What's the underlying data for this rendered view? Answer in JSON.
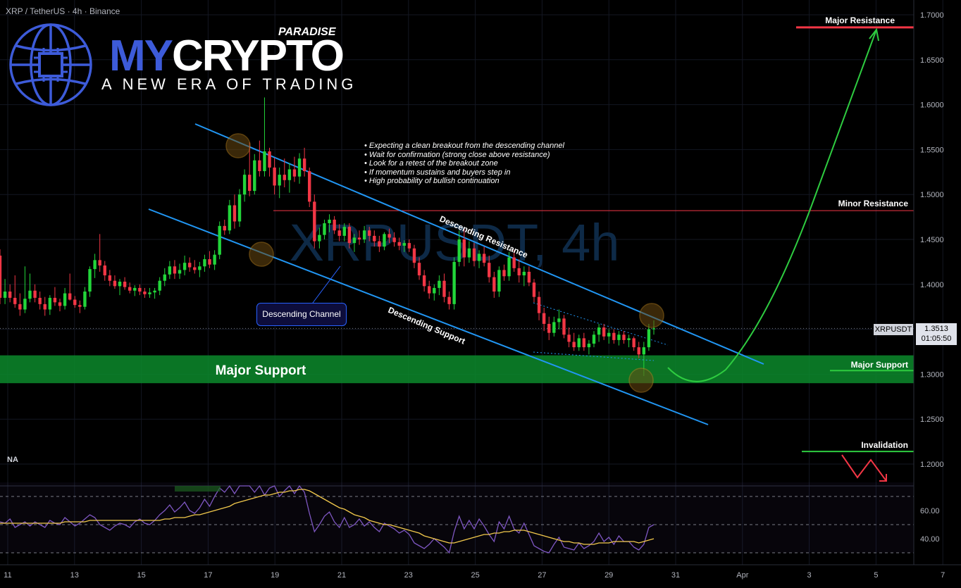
{
  "header": {
    "symbol_title": "XRP / TetherUS · 4h · Binance"
  },
  "logo": {
    "brand_part1": "MY",
    "brand_part2": "CRYPTO",
    "brand_super": "PARADISE",
    "tagline": "A NEW ERA OF TRADING"
  },
  "watermark": "XRPUSDT, 4h",
  "annotations": {
    "notes": [
      "Expecting a clean breakout from the descending channel",
      "Wait for confirmation (strong close above resistance)",
      "Look for a retest of the breakout zone",
      "If momentum sustains and buyers step in",
      "High probability of bullish continuation"
    ],
    "descending_channel": "Descending Channel",
    "descending_resistance": "Descending Resistance",
    "descending_support": "Descending Support",
    "major_support_zone": "Major Support",
    "major_support": "Major Support",
    "minor_resistance": "Minor Resistance",
    "major_resistance": "Major Resistance",
    "invalidation": "Invalidation"
  },
  "indicator": {
    "na_label": "NA"
  },
  "price_scale": {
    "symbol_tag": "XRPUSDT",
    "last_price": "1.3513",
    "countdown": "01:05:50"
  },
  "colors": {
    "up": "#22d63a",
    "down": "#f23645",
    "channel": "#2196f3",
    "support_zone": "#0c8a2c",
    "resistance": "#f23645",
    "projection": "#2ecc40",
    "rsi": "#7e57c2",
    "rsi_ma": "#f2c94c",
    "logo_blue": "#3d5bd9"
  },
  "chart_data": {
    "type": "candlestick",
    "title": "XRP / TetherUS · 4h · Binance",
    "y_ticks": [
      "1.7000",
      "1.6500",
      "1.6000",
      "1.5500",
      "1.5000",
      "1.4500",
      "1.4000",
      "1.3500",
      "1.3000",
      "1.2500",
      "1.2000"
    ],
    "ylim": [
      1.16,
      1.715
    ],
    "x_ticks": [
      "11",
      "13",
      "15",
      "17",
      "19",
      "21",
      "23",
      "25",
      "27",
      "29",
      "31",
      "Apr",
      "3",
      "5",
      "7"
    ],
    "levels": {
      "major_resistance": 1.686,
      "minor_resistance": 1.482,
      "major_support_zone": [
        1.29,
        1.321
      ],
      "major_support": 1.304,
      "invalidation": 1.214
    },
    "candles": [
      [
        1.432,
        1.439,
        1.378,
        1.385
      ],
      [
        1.385,
        1.406,
        1.378,
        1.392
      ],
      [
        1.392,
        1.4,
        1.38,
        1.385
      ],
      [
        1.385,
        1.41,
        1.374,
        1.378
      ],
      [
        1.378,
        1.39,
        1.365,
        1.372
      ],
      [
        1.372,
        1.42,
        1.368,
        1.384
      ],
      [
        1.384,
        1.412,
        1.38,
        1.393
      ],
      [
        1.393,
        1.4,
        1.38,
        1.385
      ],
      [
        1.385,
        1.392,
        1.372,
        1.378
      ],
      [
        1.378,
        1.386,
        1.365,
        1.372
      ],
      [
        1.372,
        1.388,
        1.366,
        1.385
      ],
      [
        1.385,
        1.397,
        1.376,
        1.38
      ],
      [
        1.38,
        1.384,
        1.37,
        1.376
      ],
      [
        1.376,
        1.396,
        1.372,
        1.39
      ],
      [
        1.39,
        1.412,
        1.382,
        1.383
      ],
      [
        1.383,
        1.387,
        1.374,
        1.377
      ],
      [
        1.377,
        1.382,
        1.368,
        1.375
      ],
      [
        1.375,
        1.397,
        1.372,
        1.392
      ],
      [
        1.392,
        1.42,
        1.386,
        1.417
      ],
      [
        1.417,
        1.434,
        1.407,
        1.427
      ],
      [
        1.427,
        1.456,
        1.414,
        1.421
      ],
      [
        1.421,
        1.426,
        1.404,
        1.41
      ],
      [
        1.41,
        1.416,
        1.398,
        1.404
      ],
      [
        1.404,
        1.41,
        1.395,
        1.398
      ],
      [
        1.398,
        1.406,
        1.388,
        1.403
      ],
      [
        1.403,
        1.408,
        1.394,
        1.397
      ],
      [
        1.397,
        1.402,
        1.39,
        1.393
      ],
      [
        1.393,
        1.399,
        1.387,
        1.396
      ],
      [
        1.396,
        1.4,
        1.388,
        1.392
      ],
      [
        1.392,
        1.396,
        1.385,
        1.389
      ],
      [
        1.389,
        1.396,
        1.385,
        1.391
      ],
      [
        1.391,
        1.396,
        1.384,
        1.393
      ],
      [
        1.393,
        1.408,
        1.388,
        1.404
      ],
      [
        1.404,
        1.418,
        1.398,
        1.411
      ],
      [
        1.411,
        1.426,
        1.406,
        1.42
      ],
      [
        1.42,
        1.427,
        1.406,
        1.412
      ],
      [
        1.412,
        1.423,
        1.406,
        1.416
      ],
      [
        1.416,
        1.432,
        1.41,
        1.424
      ],
      [
        1.424,
        1.43,
        1.414,
        1.419
      ],
      [
        1.419,
        1.427,
        1.412,
        1.416
      ],
      [
        1.416,
        1.425,
        1.408,
        1.42
      ],
      [
        1.42,
        1.433,
        1.414,
        1.428
      ],
      [
        1.428,
        1.437,
        1.418,
        1.422
      ],
      [
        1.422,
        1.438,
        1.416,
        1.433
      ],
      [
        1.433,
        1.47,
        1.428,
        1.465
      ],
      [
        1.465,
        1.472,
        1.455,
        1.46
      ],
      [
        1.46,
        1.494,
        1.456,
        1.488
      ],
      [
        1.488,
        1.5,
        1.462,
        1.47
      ],
      [
        1.47,
        1.506,
        1.464,
        1.5
      ],
      [
        1.5,
        1.528,
        1.492,
        1.522
      ],
      [
        1.522,
        1.558,
        1.498,
        1.504
      ],
      [
        1.504,
        1.545,
        1.5,
        1.538
      ],
      [
        1.538,
        1.56,
        1.52,
        1.526
      ],
      [
        1.526,
        1.608,
        1.52,
        1.548
      ],
      [
        1.548,
        1.552,
        1.52,
        1.53
      ],
      [
        1.53,
        1.541,
        1.5,
        1.51
      ],
      [
        1.51,
        1.53,
        1.496,
        1.522
      ],
      [
        1.522,
        1.54,
        1.508,
        1.516
      ],
      [
        1.516,
        1.535,
        1.502,
        1.528
      ],
      [
        1.528,
        1.542,
        1.514,
        1.52
      ],
      [
        1.52,
        1.546,
        1.512,
        1.54
      ],
      [
        1.54,
        1.552,
        1.52,
        1.526
      ],
      [
        1.526,
        1.53,
        1.486,
        1.492
      ],
      [
        1.492,
        1.5,
        1.44,
        1.448
      ],
      [
        1.448,
        1.463,
        1.44,
        1.455
      ],
      [
        1.455,
        1.472,
        1.45,
        1.468
      ],
      [
        1.468,
        1.478,
        1.458,
        1.472
      ],
      [
        1.472,
        1.476,
        1.456,
        1.46
      ],
      [
        1.46,
        1.467,
        1.448,
        1.454
      ],
      [
        1.454,
        1.468,
        1.448,
        1.464
      ],
      [
        1.464,
        1.468,
        1.44,
        1.446
      ],
      [
        1.446,
        1.456,
        1.436,
        1.452
      ],
      [
        1.452,
        1.46,
        1.444,
        1.45
      ],
      [
        1.45,
        1.465,
        1.446,
        1.46
      ],
      [
        1.46,
        1.464,
        1.448,
        1.454
      ],
      [
        1.454,
        1.46,
        1.442,
        1.448
      ],
      [
        1.448,
        1.454,
        1.436,
        1.442
      ],
      [
        1.442,
        1.458,
        1.438,
        1.456
      ],
      [
        1.456,
        1.462,
        1.446,
        1.452
      ],
      [
        1.452,
        1.458,
        1.442,
        1.447
      ],
      [
        1.447,
        1.452,
        1.438,
        1.443
      ],
      [
        1.443,
        1.449,
        1.436,
        1.446
      ],
      [
        1.446,
        1.45,
        1.436,
        1.44
      ],
      [
        1.44,
        1.444,
        1.418,
        1.424
      ],
      [
        1.424,
        1.43,
        1.405,
        1.41
      ],
      [
        1.41,
        1.416,
        1.392,
        1.398
      ],
      [
        1.398,
        1.404,
        1.384,
        1.39
      ],
      [
        1.39,
        1.4,
        1.382,
        1.396
      ],
      [
        1.396,
        1.41,
        1.388,
        1.404
      ],
      [
        1.404,
        1.412,
        1.38,
        1.386
      ],
      [
        1.386,
        1.392,
        1.372,
        1.378
      ],
      [
        1.378,
        1.43,
        1.372,
        1.425
      ],
      [
        1.425,
        1.46,
        1.42,
        1.45
      ],
      [
        1.45,
        1.462,
        1.42,
        1.43
      ],
      [
        1.43,
        1.448,
        1.424,
        1.44
      ],
      [
        1.44,
        1.446,
        1.42,
        1.426
      ],
      [
        1.426,
        1.438,
        1.418,
        1.434
      ],
      [
        1.434,
        1.442,
        1.42,
        1.424
      ],
      [
        1.424,
        1.432,
        1.402,
        1.408
      ],
      [
        1.408,
        1.414,
        1.385,
        1.392
      ],
      [
        1.392,
        1.42,
        1.386,
        1.416
      ],
      [
        1.416,
        1.422,
        1.404,
        1.409
      ],
      [
        1.409,
        1.436,
        1.404,
        1.43
      ],
      [
        1.43,
        1.438,
        1.414,
        1.418
      ],
      [
        1.418,
        1.428,
        1.402,
        1.41
      ],
      [
        1.41,
        1.42,
        1.398,
        1.414
      ],
      [
        1.414,
        1.42,
        1.398,
        1.402
      ],
      [
        1.402,
        1.406,
        1.38,
        1.386
      ],
      [
        1.386,
        1.392,
        1.36,
        1.368
      ],
      [
        1.368,
        1.374,
        1.348,
        1.356
      ],
      [
        1.356,
        1.364,
        1.338,
        1.346
      ],
      [
        1.346,
        1.364,
        1.342,
        1.358
      ],
      [
        1.358,
        1.372,
        1.35,
        1.362
      ],
      [
        1.362,
        1.366,
        1.34,
        1.344
      ],
      [
        1.344,
        1.352,
        1.33,
        1.336
      ],
      [
        1.336,
        1.346,
        1.326,
        1.33
      ],
      [
        1.33,
        1.344,
        1.326,
        1.34
      ],
      [
        1.34,
        1.346,
        1.326,
        1.33
      ],
      [
        1.33,
        1.338,
        1.322,
        1.334
      ],
      [
        1.334,
        1.348,
        1.33,
        1.344
      ],
      [
        1.344,
        1.356,
        1.336,
        1.352
      ],
      [
        1.352,
        1.356,
        1.338,
        1.342
      ],
      [
        1.342,
        1.35,
        1.334,
        1.346
      ],
      [
        1.346,
        1.35,
        1.334,
        1.338
      ],
      [
        1.338,
        1.348,
        1.332,
        1.344
      ],
      [
        1.344,
        1.348,
        1.334,
        1.338
      ],
      [
        1.338,
        1.344,
        1.33,
        1.34
      ],
      [
        1.34,
        1.342,
        1.326,
        1.33
      ],
      [
        1.33,
        1.336,
        1.318,
        1.322
      ],
      [
        1.322,
        1.336,
        1.298,
        1.33
      ],
      [
        1.33,
        1.356,
        1.326,
        1.35
      ],
      [
        1.35,
        1.36,
        1.344,
        1.351
      ]
    ],
    "rsi": {
      "ylim": [
        27,
        82
      ],
      "ticks": [
        "60.00",
        "40.00"
      ],
      "values": [
        52,
        51,
        54,
        48,
        50,
        52,
        49,
        52,
        50,
        48,
        53,
        51,
        50,
        55,
        52,
        49,
        51,
        54,
        57,
        55,
        50,
        48,
        46,
        49,
        51,
        50,
        48,
        52,
        54,
        51,
        50,
        53,
        57,
        60,
        64,
        59,
        62,
        66,
        60,
        58,
        62,
        68,
        63,
        70,
        76,
        73,
        78,
        72,
        79,
        80,
        81,
        73,
        78,
        71,
        76,
        79,
        70,
        74,
        78,
        72,
        80,
        73,
        58,
        45,
        50,
        56,
        59,
        52,
        48,
        55,
        48,
        50,
        54,
        49,
        52,
        48,
        45,
        51,
        49,
        47,
        44,
        46,
        43,
        37,
        35,
        33,
        36,
        40,
        37,
        34,
        30,
        45,
        56,
        47,
        53,
        47,
        54,
        49,
        43,
        38,
        52,
        47,
        56,
        47,
        44,
        51,
        43,
        35,
        33,
        31,
        30,
        36,
        41,
        34,
        33,
        32,
        37,
        33,
        35,
        38,
        44,
        38,
        41,
        36,
        42,
        38,
        38,
        34,
        32,
        36,
        48,
        50
      ],
      "ma": [
        51,
        51,
        51,
        51,
        51,
        51,
        51,
        51,
        51,
        51,
        51,
        51,
        51,
        52,
        52,
        52,
        52,
        52,
        53,
        53,
        53,
        53,
        53,
        53,
        53,
        53,
        53,
        53,
        53,
        53,
        53,
        53,
        53,
        54,
        54,
        55,
        55,
        55,
        56,
        57,
        57,
        58,
        59,
        60,
        61,
        62,
        63,
        65,
        66,
        67,
        68,
        69,
        70,
        71,
        71,
        72,
        73,
        73,
        74,
        74,
        75,
        75,
        74,
        72,
        70,
        68,
        66,
        64,
        62,
        61,
        59,
        57,
        56,
        55,
        53,
        52,
        51,
        50,
        50,
        49,
        48,
        47,
        46,
        45,
        44,
        42,
        41,
        40,
        39,
        38,
        37,
        37,
        38,
        39,
        40,
        41,
        42,
        43,
        43,
        44,
        44,
        45,
        45,
        46,
        46,
        46,
        45,
        44,
        43,
        42,
        41,
        40,
        39,
        38,
        38,
        37,
        37,
        36,
        36,
        36,
        37,
        37,
        37,
        38,
        38,
        38,
        38,
        38,
        37,
        38,
        39,
        40
      ]
    }
  }
}
